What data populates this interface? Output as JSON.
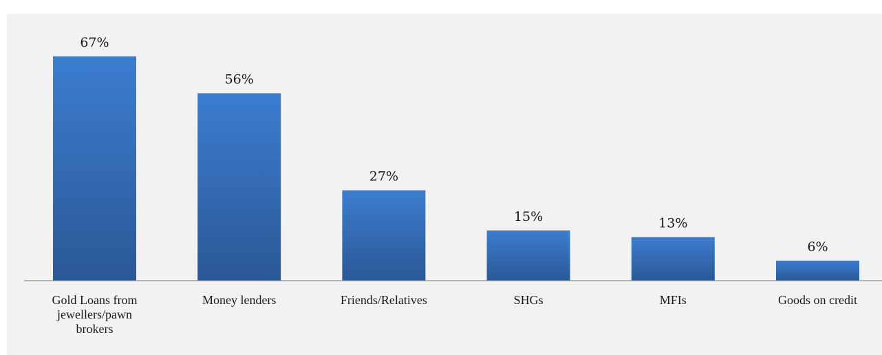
{
  "chart_data": {
    "type": "bar",
    "title": "",
    "categories": [
      "Gold Loans from jewellers/pawn brokers",
      "Money lenders",
      "Friends/Relatives",
      "SHGs",
      "MFIs",
      "Goods on credit"
    ],
    "category_label_lines": [
      [
        "Gold Loans from",
        "jewellers/pawn",
        "brokers"
      ],
      [
        "Money lenders"
      ],
      [
        "Friends/Relatives"
      ],
      [
        "SHGs"
      ],
      [
        "MFIs"
      ],
      [
        "Goods on credit"
      ]
    ],
    "values": [
      67,
      56,
      27,
      15,
      13,
      6
    ],
    "data_labels": [
      "67%",
      "56%",
      "27%",
      "15%",
      "13%",
      "6%"
    ],
    "xlabel": "",
    "ylabel": "",
    "ylim": [
      0,
      67
    ],
    "grid": false,
    "legend": "none",
    "colors": {
      "bar_top": "#3c7dd0",
      "bar_bottom": "#2b5895",
      "panel": "#f2f2f2",
      "axis": "#8c8c8c"
    }
  }
}
